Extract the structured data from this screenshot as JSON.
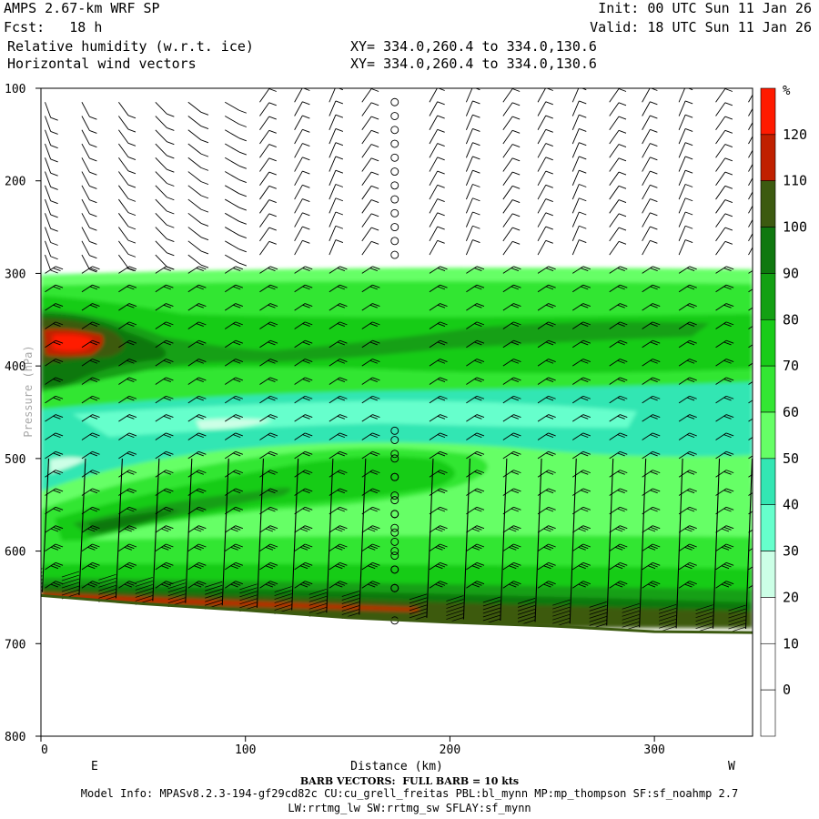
{
  "header": {
    "model": "AMPS 2.67-km WRF SP",
    "init": "Init: 00 UTC Sun 11 Jan 26",
    "fcst": "Fcst:   18 h",
    "valid": "Valid: 18 UTC Sun 11 Jan 26",
    "field1": "Relative humidity (w.r.t. ice)",
    "field2": "Horizontal wind vectors",
    "xy1": "XY= 334.0,260.4 to 334.0,130.6",
    "xy2": "XY= 334.0,260.4 to 334.0,130.6"
  },
  "footer": {
    "barb_note": "BARB VECTORS:  FULL BARB = 10 kts",
    "model_info": "Model Info: MPASv8.2.3-194-gf29cd82c CU:cu_grell_freitas PBL:bl_mynn MP:mp_thompson SF:sf_noahmp 2.7",
    "model_info2": "LW:rrtmg_lw SW:rrtmg_sw SFLAY:sf_mynn"
  },
  "colors": {
    "white": "#ffffff",
    "c30": "#ccffe6",
    "c40": "#66ffcc",
    "c50": "#33e6b3",
    "c60": "#66ff66",
    "c70": "#33e633",
    "c80": "#19cc19",
    "c90": "#13a013",
    "c100": "#0f780f",
    "c110": "#3c5a10",
    "c120": "#c02000",
    "c130": "#ff1a00",
    "ground": "#3c5a10",
    "dot": "#000000"
  },
  "chart_data": {
    "type": "heatmap",
    "title": "Relative humidity (w.r.t. ice) and horizontal wind vectors cross-section",
    "xlabel": "Distance (km)",
    "ylabel": "Pressure (hPa)",
    "xlim": [
      0,
      348
    ],
    "ylim": [
      800,
      100
    ],
    "x_ticks": [
      0,
      100,
      200,
      300
    ],
    "y_ticks": [
      100,
      200,
      300,
      400,
      500,
      600,
      700,
      800
    ],
    "end_labels": {
      "left": "E",
      "right": "W"
    },
    "colorbar": {
      "unit": "%",
      "levels": [
        0,
        10,
        20,
        30,
        40,
        50,
        60,
        70,
        80,
        90,
        100,
        110,
        120
      ],
      "colors": [
        "#ffffff",
        "#ffffff",
        "#ffffff",
        "#ccffe6",
        "#66ffcc",
        "#33e6b3",
        "#66ff66",
        "#33e633",
        "#19cc19",
        "#13a013",
        "#0f780f",
        "#3c5a10",
        "#c02000",
        "#ff1a00"
      ]
    },
    "moist_layer_top_hpa": 290,
    "terrain": [
      {
        "km": 0,
        "hpa": 648
      },
      {
        "km": 50,
        "hpa": 657
      },
      {
        "km": 100,
        "hpa": 664
      },
      {
        "km": 150,
        "hpa": 672
      },
      {
        "km": 200,
        "hpa": 677
      },
      {
        "km": 250,
        "hpa": 681
      },
      {
        "km": 300,
        "hpa": 687
      },
      {
        "km": 348,
        "hpa": 688
      }
    ],
    "features": [
      {
        "label": "RH > 120% core",
        "km": [
          5,
          32
        ],
        "hpa": [
          360,
          393
        ]
      },
      {
        "label": "RH 90-110% band",
        "km": [
          0,
          150
        ],
        "hpa": [
          330,
          430
        ]
      },
      {
        "label": "RH 90-110% band",
        "km": [
          130,
          290
        ],
        "hpa": [
          350,
          395
        ]
      },
      {
        "label": "dry tongue RH 30-50%",
        "km": [
          10,
          260
        ],
        "hpa": [
          440,
          510
        ]
      },
      {
        "label": "RH 90-110% mid-level band",
        "km": [
          20,
          220
        ],
        "hpa": [
          490,
          580
        ]
      }
    ],
    "calm_column_km": 173,
    "barb_columns_km": [
      2,
      20,
      38,
      56,
      72,
      90,
      107,
      124,
      141,
      157,
      190,
      208,
      226,
      243,
      260,
      278,
      294,
      312,
      330,
      346
    ],
    "barb_levels_hpa": [
      115,
      130,
      145,
      160,
      175,
      190,
      205,
      220,
      235,
      250,
      265,
      280,
      300,
      320,
      340,
      360,
      380,
      400,
      420,
      440,
      460,
      480,
      500,
      520,
      540,
      560,
      580,
      600,
      620,
      640
    ]
  }
}
